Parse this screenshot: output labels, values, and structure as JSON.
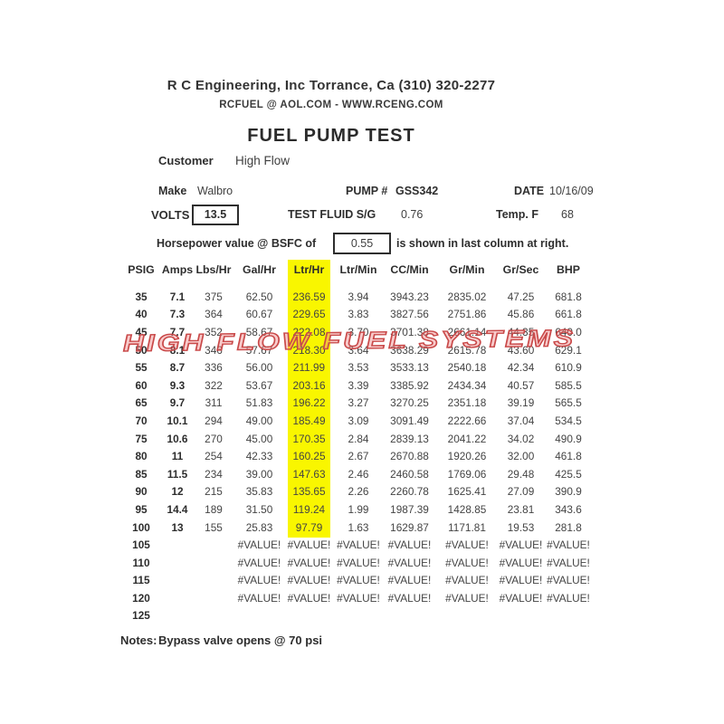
{
  "header": {
    "company_line": "R C Engineering, Inc  Torrance,  Ca  (310) 320-2277",
    "contact_line": "RCFUEL @ AOL.COM -  WWW.RCENG.COM",
    "title": "FUEL PUMP TEST"
  },
  "customer": {
    "label": "Customer",
    "value": "High Flow"
  },
  "pump_info": {
    "make_label": "Make",
    "make_value": "Walbro",
    "pump_number_label": "PUMP #",
    "pump_number_value": "GSS342",
    "date_label": "DATE",
    "date_value": "10/16/09"
  },
  "test_conditions": {
    "volts_label": "VOLTS",
    "volts_value": "13.5",
    "test_fluid_label": "TEST FLUID  S/G",
    "test_fluid_sg": "0.76",
    "temp_label": "Temp.  F",
    "temp_value": "68"
  },
  "bsfc": {
    "prefix": "Horsepower value @  BSFC of",
    "value": "0.55",
    "suffix": "is shown in last column at right."
  },
  "watermark": {
    "text": "HIGH FLOW FUEL SYSTEMS",
    "color": "#c94949"
  },
  "table": {
    "columns": [
      "PSIG",
      "Amps",
      "Lbs/Hr",
      "Gal/Hr",
      "Ltr/Hr",
      "Ltr/Min",
      "CC/Min",
      "Gr/Min",
      "Gr/Sec",
      "BHP"
    ],
    "highlight_column": "Ltr/Hr",
    "highlight_color": "#f9f600",
    "rows": [
      [
        "35",
        "7.1",
        "375",
        "62.50",
        "236.59",
        "3.94",
        "3943.23",
        "2835.02",
        "47.25",
        "681.8"
      ],
      [
        "40",
        "7.3",
        "364",
        "60.67",
        "229.65",
        "3.83",
        "3827.56",
        "2751.86",
        "45.86",
        "661.8"
      ],
      [
        "45",
        "7.7",
        "352",
        "58.67",
        "222.08",
        "3.70",
        "3701.38",
        "2661.14",
        "44.35",
        "640.0"
      ],
      [
        "50",
        "8.1",
        "346",
        "57.67",
        "218.30",
        "3.64",
        "3638.29",
        "2615.78",
        "43.60",
        "629.1"
      ],
      [
        "55",
        "8.7",
        "336",
        "56.00",
        "211.99",
        "3.53",
        "3533.13",
        "2540.18",
        "42.34",
        "610.9"
      ],
      [
        "60",
        "9.3",
        "322",
        "53.67",
        "203.16",
        "3.39",
        "3385.92",
        "2434.34",
        "40.57",
        "585.5"
      ],
      [
        "65",
        "9.7",
        "311",
        "51.83",
        "196.22",
        "3.27",
        "3270.25",
        "2351.18",
        "39.19",
        "565.5"
      ],
      [
        "70",
        "10.1",
        "294",
        "49.00",
        "185.49",
        "3.09",
        "3091.49",
        "2222.66",
        "37.04",
        "534.5"
      ],
      [
        "75",
        "10.6",
        "270",
        "45.00",
        "170.35",
        "2.84",
        "2839.13",
        "2041.22",
        "34.02",
        "490.9"
      ],
      [
        "80",
        "11",
        "254",
        "42.33",
        "160.25",
        "2.67",
        "2670.88",
        "1920.26",
        "32.00",
        "461.8"
      ],
      [
        "85",
        "11.5",
        "234",
        "39.00",
        "147.63",
        "2.46",
        "2460.58",
        "1769.06",
        "29.48",
        "425.5"
      ],
      [
        "90",
        "12",
        "215",
        "35.83",
        "135.65",
        "2.26",
        "2260.78",
        "1625.41",
        "27.09",
        "390.9"
      ],
      [
        "95",
        "14.4",
        "189",
        "31.50",
        "119.24",
        "1.99",
        "1987.39",
        "1428.85",
        "23.81",
        "343.6"
      ],
      [
        "100",
        "13",
        "155",
        "25.83",
        "97.79",
        "1.63",
        "1629.87",
        "1171.81",
        "19.53",
        "281.8"
      ],
      [
        "105",
        "",
        "",
        "#VALUE!",
        "#VALUE!",
        "#VALUE!",
        "#VALUE!",
        "#VALUE!",
        "#VALUE!",
        "#VALUE!"
      ],
      [
        "110",
        "",
        "",
        "#VALUE!",
        "#VALUE!",
        "#VALUE!",
        "#VALUE!",
        "#VALUE!",
        "#VALUE!",
        "#VALUE!"
      ],
      [
        "115",
        "",
        "",
        "#VALUE!",
        "#VALUE!",
        "#VALUE!",
        "#VALUE!",
        "#VALUE!",
        "#VALUE!",
        "#VALUE!"
      ],
      [
        "120",
        "",
        "",
        "#VALUE!",
        "#VALUE!",
        "#VALUE!",
        "#VALUE!",
        "#VALUE!",
        "#VALUE!",
        "#VALUE!"
      ],
      [
        "125",
        "",
        "",
        "",
        "",
        "",
        "",
        "",
        "",
        ""
      ]
    ]
  },
  "notes": {
    "label": "Notes:",
    "text": "Bypass valve opens @ 70 psi"
  }
}
